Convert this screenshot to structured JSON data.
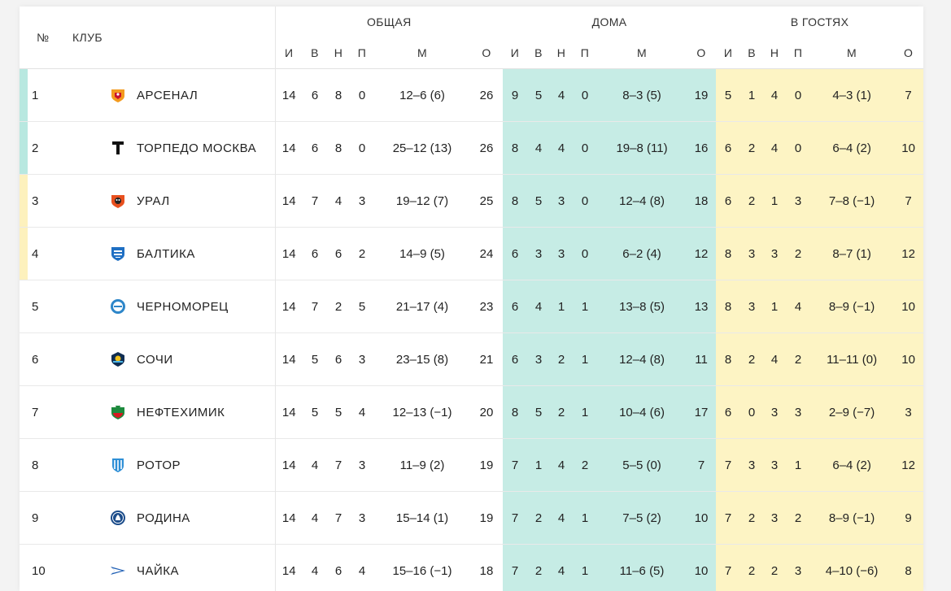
{
  "headers": {
    "num": "№",
    "club": "КЛУБ",
    "overall": "ОБЩАЯ",
    "home": "ДОМА",
    "away": "В ГОСТЯХ",
    "cols": [
      "И",
      "В",
      "Н",
      "П",
      "М",
      "О"
    ]
  },
  "rows": [
    {
      "pos": "1",
      "club": "АРСЕНАЛ",
      "logo": "arsenal-logo-icon",
      "overall": [
        "14",
        "6",
        "8",
        "0",
        "12–6 (6)",
        "26"
      ],
      "home": [
        "9",
        "5",
        "4",
        "0",
        "8–3 (5)",
        "19"
      ],
      "away": [
        "5",
        "1",
        "4",
        "0",
        "4–3 (1)",
        "7"
      ],
      "zone": "teal"
    },
    {
      "pos": "2",
      "club": "ТОРПЕДО МОСКВА",
      "logo": "torpedo-logo-icon",
      "overall": [
        "14",
        "6",
        "8",
        "0",
        "25–12 (13)",
        "26"
      ],
      "home": [
        "8",
        "4",
        "4",
        "0",
        "19–8 (11)",
        "16"
      ],
      "away": [
        "6",
        "2",
        "4",
        "0",
        "6–4 (2)",
        "10"
      ],
      "zone": "teal"
    },
    {
      "pos": "3",
      "club": "УРАЛ",
      "logo": "ural-logo-icon",
      "overall": [
        "14",
        "7",
        "4",
        "3",
        "19–12 (7)",
        "25"
      ],
      "home": [
        "8",
        "5",
        "3",
        "0",
        "12–4 (8)",
        "18"
      ],
      "away": [
        "6",
        "2",
        "1",
        "3",
        "7–8 (−1)",
        "7"
      ],
      "zone": "yellow"
    },
    {
      "pos": "4",
      "club": "БАЛТИКА",
      "logo": "baltika-logo-icon",
      "overall": [
        "14",
        "6",
        "6",
        "2",
        "14–9 (5)",
        "24"
      ],
      "home": [
        "6",
        "3",
        "3",
        "0",
        "6–2 (4)",
        "12"
      ],
      "away": [
        "8",
        "3",
        "3",
        "2",
        "8–7 (1)",
        "12"
      ],
      "zone": "yellow"
    },
    {
      "pos": "5",
      "club": "ЧЕРНОМОРЕЦ",
      "logo": "chernomorets-logo-icon",
      "overall": [
        "14",
        "7",
        "2",
        "5",
        "21–17 (4)",
        "23"
      ],
      "home": [
        "6",
        "4",
        "1",
        "1",
        "13–8 (5)",
        "13"
      ],
      "away": [
        "8",
        "3",
        "1",
        "4",
        "8–9 (−1)",
        "10"
      ],
      "zone": "none"
    },
    {
      "pos": "6",
      "club": "СОЧИ",
      "logo": "sochi-logo-icon",
      "overall": [
        "14",
        "5",
        "6",
        "3",
        "23–15 (8)",
        "21"
      ],
      "home": [
        "6",
        "3",
        "2",
        "1",
        "12–4 (8)",
        "11"
      ],
      "away": [
        "8",
        "2",
        "4",
        "2",
        "11–11 (0)",
        "10"
      ],
      "zone": "none"
    },
    {
      "pos": "7",
      "club": "НЕФТЕХИМИК",
      "logo": "neftekhimik-logo-icon",
      "overall": [
        "14",
        "5",
        "5",
        "4",
        "12–13 (−1)",
        "20"
      ],
      "home": [
        "8",
        "5",
        "2",
        "1",
        "10–4 (6)",
        "17"
      ],
      "away": [
        "6",
        "0",
        "3",
        "3",
        "2–9 (−7)",
        "3"
      ],
      "zone": "none"
    },
    {
      "pos": "8",
      "club": "РОТОР",
      "logo": "rotor-logo-icon",
      "overall": [
        "14",
        "4",
        "7",
        "3",
        "11–9 (2)",
        "19"
      ],
      "home": [
        "7",
        "1",
        "4",
        "2",
        "5–5 (0)",
        "7"
      ],
      "away": [
        "7",
        "3",
        "3",
        "1",
        "6–4 (2)",
        "12"
      ],
      "zone": "none"
    },
    {
      "pos": "9",
      "club": "РОДИНА",
      "logo": "rodina-logo-icon",
      "overall": [
        "14",
        "4",
        "7",
        "3",
        "15–14 (1)",
        "19"
      ],
      "home": [
        "7",
        "2",
        "4",
        "1",
        "7–5 (2)",
        "10"
      ],
      "away": [
        "7",
        "2",
        "3",
        "2",
        "8–9 (−1)",
        "9"
      ],
      "zone": "none"
    },
    {
      "pos": "10",
      "club": "ЧАЙКА",
      "logo": "chaika-logo-icon",
      "overall": [
        "14",
        "4",
        "6",
        "4",
        "15–16 (−1)",
        "18"
      ],
      "home": [
        "7",
        "2",
        "4",
        "1",
        "11–6 (5)",
        "10"
      ],
      "away": [
        "7",
        "2",
        "2",
        "3",
        "4–10 (−6)",
        "8"
      ],
      "zone": "none"
    }
  ],
  "colors": {
    "home_bg": "#c6ece5",
    "away_bg": "#fdf4c4",
    "zone_teal": "#b8e8e0",
    "zone_yellow": "#fdf1bd"
  }
}
